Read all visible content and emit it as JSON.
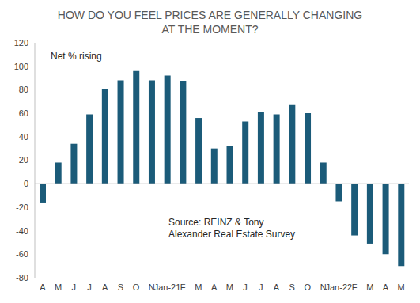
{
  "chart_data": {
    "type": "bar",
    "title": "HOW DO YOU FEEL PRICES ARE GENERALLY CHANGING AT THE MOMENT?",
    "annotations": [
      "Net % rising",
      "Source: REINZ & Tony Alexander Real Estate Survey"
    ],
    "categories": [
      "A",
      "M",
      "J",
      "J",
      "A",
      "S",
      "O",
      "N",
      "Jan-21",
      "F",
      "M",
      "A",
      "M",
      "J",
      "J",
      "A",
      "S",
      "O",
      "N",
      "Jan-22",
      "F",
      "M",
      "A",
      "M"
    ],
    "values": [
      -16,
      18,
      34,
      59,
      81,
      88,
      96,
      88,
      92,
      87,
      56,
      30,
      32,
      53,
      61,
      59,
      67,
      60,
      18,
      -15,
      -44,
      -51,
      -60,
      -70
    ],
    "color": "#1b5b79",
    "ylim": [
      -80,
      120
    ],
    "yticks": [
      -80,
      -60,
      -40,
      -20,
      0,
      20,
      40,
      60,
      80,
      100,
      120
    ],
    "grid": false
  }
}
